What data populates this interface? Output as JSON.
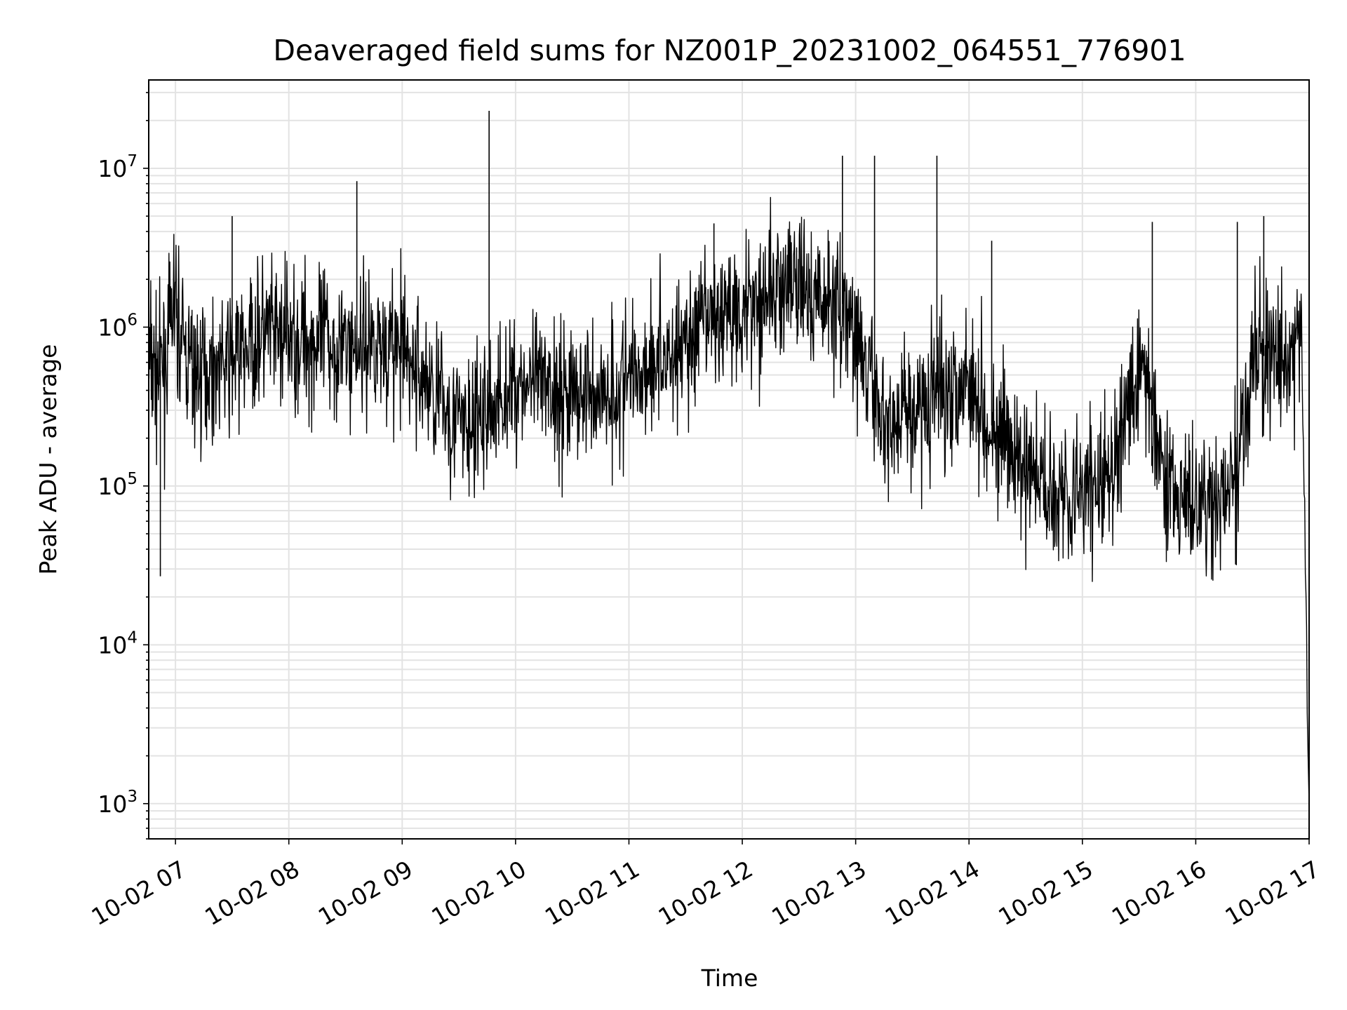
{
  "chart_data": {
    "type": "line",
    "title": "Deaveraged field sums for NZ001P_20231002_064551_776901",
    "xlabel": "Time",
    "ylabel": "Peak ADU - average",
    "yscale": "log",
    "grid": true,
    "line_color": "#000000",
    "xlim": [
      "2023-10-02 06:45:51",
      "2023-10-02 17:00:00"
    ],
    "ylim": [
      600,
      36000000
    ],
    "x_ticks": [
      {
        "value": "2023-10-02 07:00",
        "label": "10-02 07"
      },
      {
        "value": "2023-10-02 08:00",
        "label": "10-02 08"
      },
      {
        "value": "2023-10-02 09:00",
        "label": "10-02 09"
      },
      {
        "value": "2023-10-02 10:00",
        "label": "10-02 10"
      },
      {
        "value": "2023-10-02 11:00",
        "label": "10-02 11"
      },
      {
        "value": "2023-10-02 12:00",
        "label": "10-02 12"
      },
      {
        "value": "2023-10-02 13:00",
        "label": "10-02 13"
      },
      {
        "value": "2023-10-02 14:00",
        "label": "10-02 14"
      },
      {
        "value": "2023-10-02 15:00",
        "label": "10-02 15"
      },
      {
        "value": "2023-10-02 16:00",
        "label": "10-02 16"
      },
      {
        "value": "2023-10-02 17:00",
        "label": "10-02 17"
      }
    ],
    "y_ticks": [
      {
        "value": 1000,
        "base": "10",
        "exp": "3"
      },
      {
        "value": 10000,
        "base": "10",
        "exp": "4"
      },
      {
        "value": 100000,
        "base": "10",
        "exp": "5"
      },
      {
        "value": 1000000,
        "base": "10",
        "exp": "6"
      },
      {
        "value": 10000000,
        "base": "10",
        "exp": "7"
      }
    ],
    "series": [
      {
        "x": [
          "2023-10-02 06:46",
          "2023-10-02 06:51",
          "2023-10-02 06:56",
          "2023-10-02 06:59",
          "2023-10-02 07:03",
          "2023-10-02 07:10",
          "2023-10-02 07:20",
          "2023-10-02 07:29",
          "2023-10-02 07:36",
          "2023-10-02 07:45",
          "2023-10-02 08:00",
          "2023-10-02 08:20",
          "2023-10-02 08:36",
          "2023-10-02 08:45",
          "2023-10-02 09:00",
          "2023-10-02 09:20",
          "2023-10-02 09:35",
          "2023-10-02 09:47",
          "2023-10-02 10:00",
          "2023-10-02 10:20",
          "2023-10-02 10:40",
          "2023-10-02 10:55",
          "2023-10-02 11:10",
          "2023-10-02 11:25",
          "2023-10-02 11:40",
          "2023-10-02 11:55",
          "2023-10-02 12:10",
          "2023-10-02 12:25",
          "2023-10-02 12:40",
          "2023-10-02 12:53",
          "2023-10-02 13:02",
          "2023-10-02 13:15",
          "2023-10-02 13:30",
          "2023-10-02 13:45",
          "2023-10-02 14:00",
          "2023-10-02 14:15",
          "2023-10-02 14:30",
          "2023-10-02 14:45",
          "2023-10-02 15:00",
          "2023-10-02 15:15",
          "2023-10-02 15:30",
          "2023-10-02 15:40",
          "2023-10-02 15:50",
          "2023-10-02 16:05",
          "2023-10-02 16:20",
          "2023-10-02 16:30",
          "2023-10-02 16:40",
          "2023-10-02 16:50",
          "2023-10-02 16:56",
          "2023-10-02 17:00"
        ],
        "values": [
          600000,
          500000,
          700000,
          1500000,
          800000,
          500000,
          550000,
          600000,
          700000,
          900000,
          850000,
          800000,
          750000,
          850000,
          700000,
          350000,
          220000,
          300000,
          450000,
          400000,
          380000,
          420000,
          600000,
          700000,
          1000000,
          1300000,
          1600000,
          1800000,
          1500000,
          1400000,
          700000,
          250000,
          300000,
          400000,
          500000,
          200000,
          120000,
          100000,
          90000,
          110000,
          600000,
          200000,
          80000,
          70000,
          90000,
          600000,
          700000,
          500000,
          1000000,
          1000
        ]
      }
    ],
    "spikes": [
      {
        "x": "2023-10-02 06:52",
        "y": 27000
      },
      {
        "x": "2023-10-02 07:30",
        "y": 5000000
      },
      {
        "x": "2023-10-02 08:36",
        "y": 8300000
      },
      {
        "x": "2023-10-02 09:46",
        "y": 23000000
      },
      {
        "x": "2023-10-02 11:45",
        "y": 4500000
      },
      {
        "x": "2023-10-02 12:53",
        "y": 12000000
      },
      {
        "x": "2023-10-02 13:10",
        "y": 12000000
      },
      {
        "x": "2023-10-02 13:43",
        "y": 12000000
      },
      {
        "x": "2023-10-02 14:12",
        "y": 3500000
      },
      {
        "x": "2023-10-02 15:37",
        "y": 4600000
      },
      {
        "x": "2023-10-02 16:22",
        "y": 4600000
      },
      {
        "x": "2023-10-02 16:36",
        "y": 5000000
      }
    ]
  }
}
